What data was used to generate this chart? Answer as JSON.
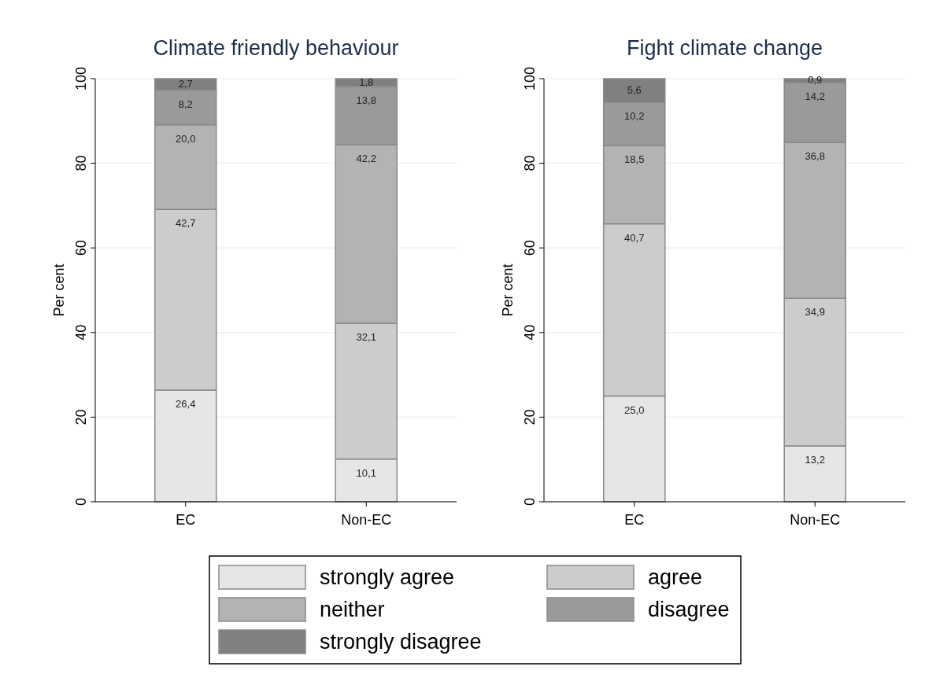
{
  "chart_data": [
    {
      "type": "bar",
      "title": "Climate friendly behaviour",
      "ylabel": "Per cent",
      "categories": [
        "EC",
        "Non-EC"
      ],
      "stacked": true,
      "ylim": [
        0,
        100
      ],
      "yticks": [
        0,
        20,
        40,
        60,
        80,
        100
      ],
      "grid": "y",
      "legend": "bottom",
      "series": [
        {
          "name": "strongly agree",
          "color": "#e6e6e6",
          "values": [
            26.4,
            10.1
          ],
          "value_labels": [
            "26,4",
            "10,1"
          ]
        },
        {
          "name": "agree",
          "color": "#cccccc",
          "values": [
            42.7,
            32.1
          ],
          "value_labels": [
            "42,7",
            "32,1"
          ]
        },
        {
          "name": "neither",
          "color": "#b3b3b3",
          "values": [
            20.0,
            42.2
          ],
          "value_labels": [
            "20,0",
            "42,2"
          ]
        },
        {
          "name": "disagree",
          "color": "#9a9a9a",
          "values": [
            8.2,
            13.8
          ],
          "value_labels": [
            "8,2",
            "13,8"
          ]
        },
        {
          "name": "strongly disagree",
          "color": "#808080",
          "values": [
            2.7,
            1.8
          ],
          "value_labels": [
            "2,7",
            "1,8"
          ]
        }
      ]
    },
    {
      "type": "bar",
      "title": "Fight climate change",
      "ylabel": "Per cent",
      "categories": [
        "EC",
        "Non-EC"
      ],
      "stacked": true,
      "ylim": [
        0,
        100
      ],
      "yticks": [
        0,
        20,
        40,
        60,
        80,
        100
      ],
      "grid": "y",
      "series": [
        {
          "color": "#e6e6e6",
          "values": [
            25.0,
            13.2
          ],
          "value_labels": [
            "25,0",
            "13,2"
          ]
        },
        {
          "color": "#cccccc",
          "values": [
            40.7,
            34.9
          ],
          "value_labels": [
            "40,7",
            "34,9"
          ]
        },
        {
          "color": "#b3b3b3",
          "values": [
            18.5,
            36.8
          ],
          "value_labels": [
            "18,5",
            "36,8"
          ]
        },
        {
          "color": "#9a9a9a",
          "values": [
            10.2,
            14.2
          ],
          "value_labels": [
            "10,2",
            "14,2"
          ]
        },
        {
          "color": "#808080",
          "values": [
            5.6,
            0.9
          ],
          "value_labels": [
            "5,6",
            "0,9"
          ]
        }
      ]
    }
  ]
}
